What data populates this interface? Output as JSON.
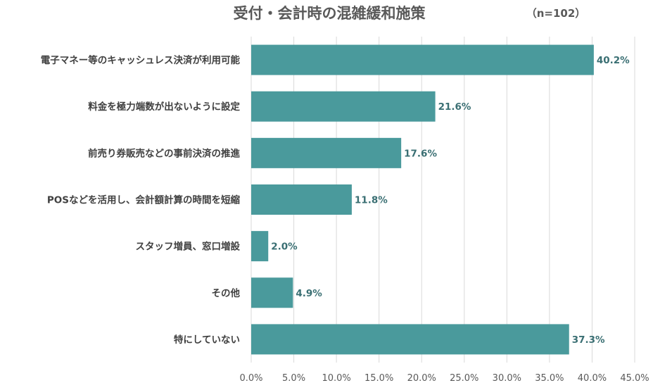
{
  "chart_data": {
    "type": "bar",
    "orientation": "horizontal",
    "title": "受付・会計時の混雑緩和施策",
    "subtitle": "（n=102）",
    "categories": [
      "電子マネー等のキャッシュレス決済が利用可能",
      "料金を極力端数が出ないように設定",
      "前売り券販売などの事前決済の推進",
      "POSなどを活用し、会計額計算の時間を短縮",
      "スタッフ増員、窓口増設",
      "その他",
      "特にしていない"
    ],
    "values": [
      40.2,
      21.6,
      17.6,
      11.8,
      2.0,
      4.9,
      37.3
    ],
    "value_labels": [
      "40.2%",
      "21.6%",
      "17.6%",
      "11.8%",
      "2.0%",
      "4.9%",
      "37.3%"
    ],
    "xlim": [
      0,
      45
    ],
    "x_ticks": [
      0,
      5,
      10,
      15,
      20,
      25,
      30,
      35,
      40,
      45
    ],
    "x_tick_labels": [
      "0.0%",
      "5.0%",
      "10.0%",
      "15.0%",
      "20.0%",
      "25.0%",
      "30.0%",
      "35.0%",
      "40.0%",
      "45.0%"
    ],
    "grid": "vertical",
    "colors": {
      "bar": "#4a9a9c",
      "value_label": "#3a6f73",
      "text": "#595959"
    }
  }
}
